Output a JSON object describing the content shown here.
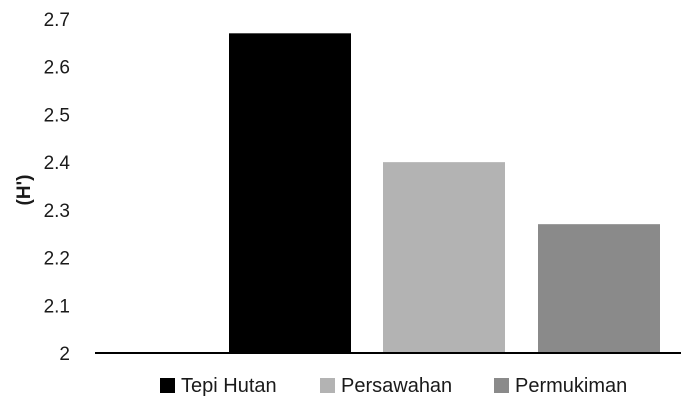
{
  "chart_data": {
    "type": "bar",
    "title": "",
    "xlabel": "",
    "ylabel": "(H')",
    "ylim": [
      2,
      2.7
    ],
    "yticks": [
      "2",
      "2.1",
      "2.2",
      "2.3",
      "2.4",
      "2.5",
      "2.6",
      "2.7"
    ],
    "grid": false,
    "legend_position": "bottom",
    "series": [
      {
        "name": "Tepi Hutan",
        "value": 2.67,
        "color": "#000000"
      },
      {
        "name": "Persawahan",
        "value": 2.4,
        "color": "#b3b3b3"
      },
      {
        "name": "Permukiman",
        "value": 2.27,
        "color": "#8a8a8a"
      }
    ]
  }
}
